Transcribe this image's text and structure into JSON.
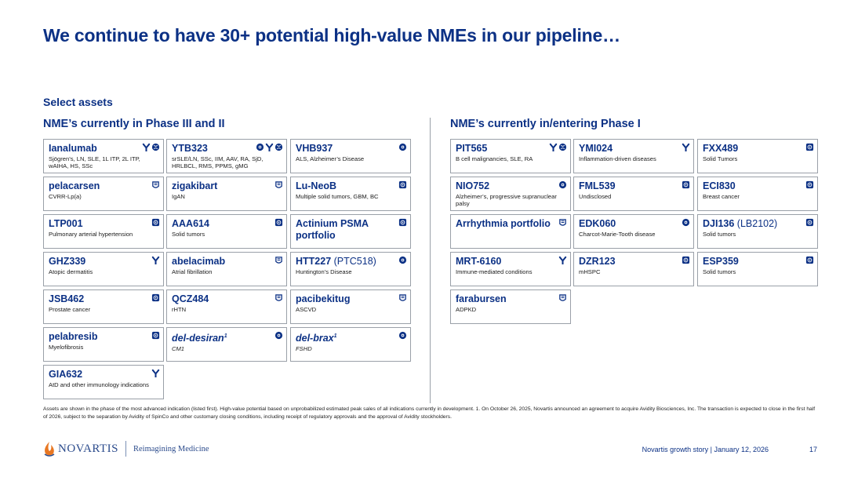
{
  "title": "We continue to have 30+ potential high-value NMEs in our pipeline…",
  "subtitle": "Select assets",
  "left_heading": "NME’s currently in Phase III and II",
  "right_heading": "NME’s currently in/entering Phase I",
  "cards": {
    "ianalumab": {
      "name": "Ianalumab",
      "desc": "Sjögren’s, LN, SLE, 1L ITP, 2L ITP, wAIHA, HS, SSc",
      "icons": [
        "antibody-icon",
        "dna-icon"
      ]
    },
    "ytb323": {
      "name": "YTB323",
      "desc": "srSLE/LN, SSc, IIM, AAV, RA, SjD, HRLBCL, RMS, PPMS, gMG",
      "icons": [
        "cell-icon",
        "antibody-icon",
        "dna-icon"
      ]
    },
    "vhb937": {
      "name": "VHB937",
      "desc": "ALS, Alzheimer’s Disease",
      "icons": [
        "cell-icon"
      ]
    },
    "pelacarsen": {
      "name": "pelacarsen",
      "desc": "CVRR-Lp(a)",
      "icons": [
        "rna-icon"
      ]
    },
    "zigakibart": {
      "name": "zigakibart",
      "desc": "IgAN",
      "icons": [
        "rna-icon"
      ]
    },
    "luneob": {
      "name": "Lu-NeoB",
      "desc": "Multiple solid tumors, GBM, BC",
      "icons": [
        "radio-icon"
      ]
    },
    "ltp001": {
      "name": "LTP001",
      "desc": "Pulmonary arterial hypertension",
      "icons": [
        "radio-icon"
      ]
    },
    "aaa614": {
      "name": "AAA614",
      "desc": "Solid tumors",
      "icons": [
        "radio-icon"
      ]
    },
    "actinium": {
      "name": "Actinium PSMA portfolio",
      "desc": "",
      "icons": [
        "radio-icon"
      ]
    },
    "ghz339": {
      "name": "GHZ339",
      "desc": "Atopic dermatitis",
      "icons": [
        "antibody-icon"
      ]
    },
    "abelacimab": {
      "name": "abelacimab",
      "desc": "Atrial fibrillation",
      "icons": [
        "rna-icon"
      ]
    },
    "htt227": {
      "name": "HTT227",
      "paren": "(PTC518)",
      "desc": "Huntington’s Disease",
      "icons": [
        "cell-icon"
      ]
    },
    "jsb462": {
      "name": "JSB462",
      "desc": "Prostate cancer",
      "icons": [
        "radio-icon"
      ]
    },
    "qcz484": {
      "name": "QCZ484",
      "desc": "rHTN",
      "icons": [
        "rna-icon"
      ]
    },
    "pacibekitug": {
      "name": "pacibekitug",
      "desc": "ASCVD",
      "icons": [
        "rna-icon"
      ]
    },
    "pelabresib": {
      "name": "pelabresib",
      "desc": "Myelofibrosis",
      "icons": [
        "radio-icon"
      ]
    },
    "deldesiran": {
      "name": "del-desiran",
      "sup": "1",
      "desc": "CM1",
      "icons": [
        "cell-icon"
      ]
    },
    "delbrax": {
      "name": "del-brax",
      "sup": "1",
      "desc": "FSHD",
      "icons": [
        "cell-icon"
      ]
    },
    "gia632": {
      "name": "GIA632",
      "desc": "AtD and other immunology indications",
      "icons": [
        "antibody-icon"
      ]
    },
    "pit565": {
      "name": "PIT565",
      "desc": "B cell malignancies, SLE, RA",
      "icons": [
        "antibody-icon",
        "dna-icon"
      ]
    },
    "ymi024": {
      "name": "YMI024",
      "desc": "Inflammation-driven diseases",
      "icons": [
        "antibody-icon"
      ]
    },
    "fxx489": {
      "name": "FXX489",
      "desc": "Solid Tumors",
      "icons": [
        "radio-icon"
      ]
    },
    "nio752": {
      "name": "NIO752",
      "desc": "Alzheimer’s, progressive supranuclear palsy",
      "icons": [
        "cell-icon"
      ]
    },
    "fml539": {
      "name": "FML539",
      "desc": "Undisclosed",
      "icons": [
        "radio-icon"
      ]
    },
    "eci830": {
      "name": "ECI830",
      "desc": "Breast cancer",
      "icons": [
        "radio-icon"
      ]
    },
    "arrhythmia": {
      "name": "Arrhythmia portfolio",
      "desc": "",
      "icons": [
        "rna-icon"
      ]
    },
    "edk060": {
      "name": "EDK060",
      "desc": "Charcot-Marie-Tooth disease",
      "icons": [
        "cell-icon"
      ]
    },
    "dji136": {
      "name": "DJI136",
      "paren": "(LB2102)",
      "desc": "Solid tumors",
      "icons": [
        "radio-icon"
      ]
    },
    "mrt6160": {
      "name": "MRT-6160",
      "desc": "Immune-mediated conditions",
      "icons": [
        "antibody-icon"
      ]
    },
    "dzr123": {
      "name": "DZR123",
      "desc": "mHSPC",
      "icons": [
        "radio-icon"
      ]
    },
    "esp359": {
      "name": "ESP359",
      "desc": "Solid tumors",
      "icons": [
        "radio-icon"
      ]
    },
    "farabursen": {
      "name": "farabursen",
      "desc": "ADPKD",
      "icons": [
        "rna-icon"
      ]
    }
  },
  "footnote": "Assets are shown in the phase of the most advanced indication (listed first). High-value potential based on unprobabilized estimated peak sales of all indications currently in development.      1. On October 26, 2025, Novartis announced an agreement to acquire Avidity Biosciences, Inc. The transaction is expected to close in the first half of 2026, subject to the separation by Avidity of SpinCo and other customary closing conditions, including receipt of regulatory approvals and the approval of Avidity stockholders.",
  "logo": {
    "word": "NOVARTIS",
    "tagline": "Reimagining Medicine"
  },
  "footer": {
    "text": "Novartis growth story | January 12, 2026",
    "page": "17"
  },
  "colors": {
    "brand": "#0c3185",
    "border": "#9aa0a8",
    "logo_orange": "#e87722"
  }
}
